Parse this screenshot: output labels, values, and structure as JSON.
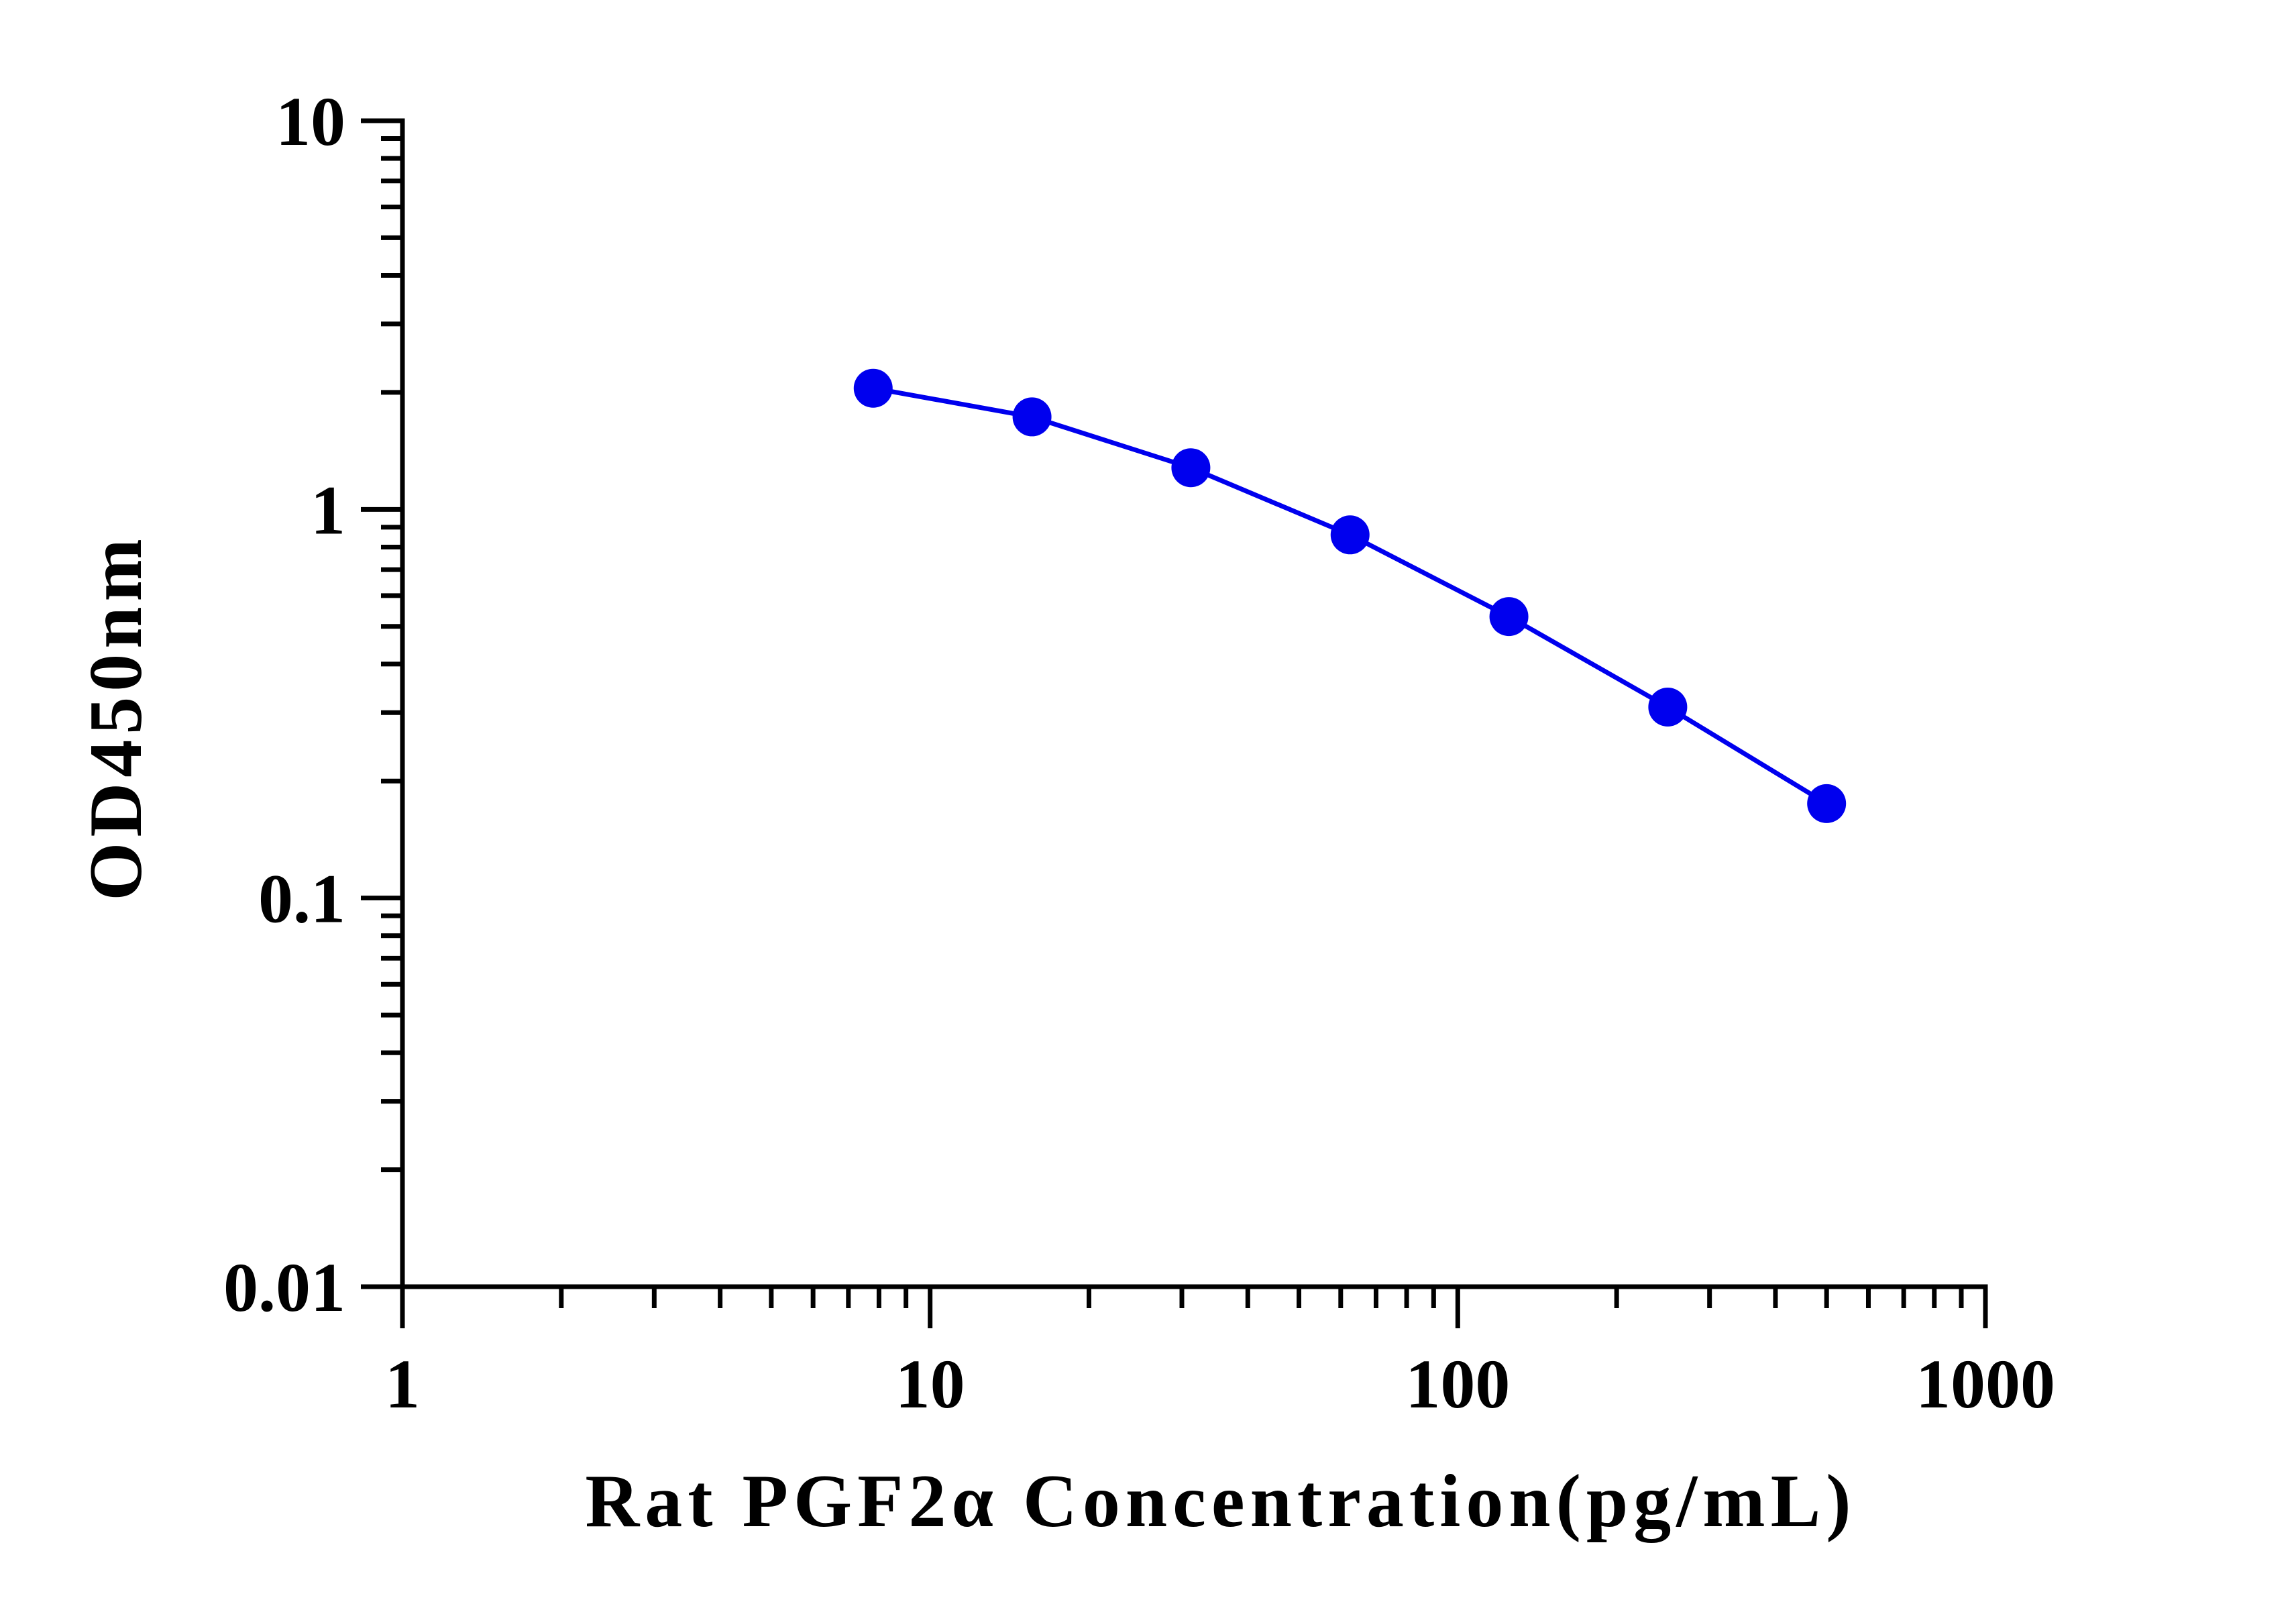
{
  "chart_data": {
    "type": "line",
    "x_scale": "log",
    "y_scale": "log",
    "xlabel": "Rat PGF2α Concentration(pg/mL)",
    "ylabel": "OD450nm",
    "xlim": [
      1,
      1000
    ],
    "ylim": [
      0.01,
      10
    ],
    "x_ticks": [
      {
        "value": 1,
        "label": "1"
      },
      {
        "value": 10,
        "label": "10"
      },
      {
        "value": 100,
        "label": "100"
      },
      {
        "value": 1000,
        "label": "1000"
      }
    ],
    "y_ticks": [
      {
        "value": 0.01,
        "label": "0.01"
      },
      {
        "value": 0.1,
        "label": "0.1"
      },
      {
        "value": 1,
        "label": "1"
      },
      {
        "value": 10,
        "label": "10"
      }
    ],
    "grid": false,
    "legend": "none",
    "series": [
      {
        "color": "#0000ee",
        "x": [
          7.8,
          15.6,
          31.2,
          62.5,
          125,
          250,
          500
        ],
        "y": [
          2.05,
          1.73,
          1.28,
          0.86,
          0.53,
          0.31,
          0.175
        ]
      }
    ]
  }
}
